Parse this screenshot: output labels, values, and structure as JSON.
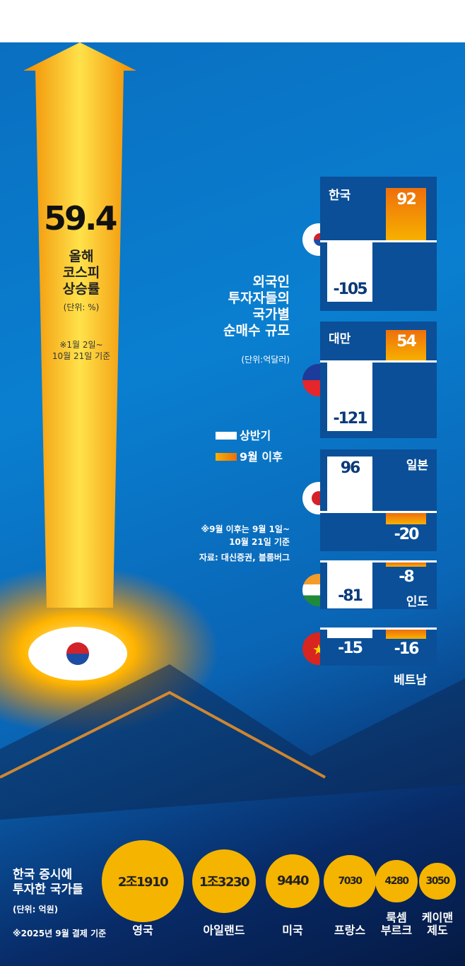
{
  "kospi": {
    "value": "59.4",
    "title_lines": [
      "올해",
      "코스피",
      "상승률"
    ],
    "unit": "(단위: %)",
    "note_lines": [
      "※1월 2일~",
      "10월 21일 기준"
    ]
  },
  "net_buy": {
    "title_lines": [
      "외국인",
      "투자자들의",
      "국가별",
      "순매수 규모"
    ],
    "unit": "(단위:억달러)",
    "legend": [
      "상반기",
      "9월 이후"
    ],
    "note_lines": [
      "※9월 이후는 9월 1일~",
      "10월 21일 기준"
    ],
    "source": "자료: 대신증권, 블룸버그"
  },
  "chart_data": [
    {
      "type": "bar",
      "ylabel": "",
      "unit": "억달러",
      "categories": [
        "한국",
        "대만",
        "일본",
        "인도",
        "베트남"
      ],
      "series": [
        {
          "name": "상반기",
          "color": "#ffffff",
          "values": [
            -105,
            -121,
            96,
            -81,
            -15
          ]
        },
        {
          "name": "9월 이후",
          "color": "#f39a0a",
          "values": [
            92,
            54,
            -20,
            -8,
            -16
          ]
        }
      ]
    },
    {
      "type": "bubble",
      "title": "한국 증시에 투자한 국가들",
      "unit": "(단위: 억원)",
      "note": "※2025년 9월 결제 기준",
      "categories": [
        "영국",
        "아일랜드",
        "미국",
        "프랑스",
        "룩셈 부르크",
        "케이맨 제도"
      ],
      "values": [
        21910,
        13230,
        9440,
        7030,
        4280,
        3050
      ],
      "labels": [
        "2조1910",
        "1조3230",
        "9440",
        "7030",
        "4280",
        "3050"
      ]
    }
  ],
  "bubbles_title_lines": [
    "한국 증시에",
    "투자한 국가들"
  ],
  "bubble_names": [
    [
      "영국"
    ],
    [
      "아일랜드"
    ],
    [
      "미국"
    ],
    [
      "프랑스"
    ],
    [
      "룩셈",
      "부르크"
    ],
    [
      "케이맨",
      "제도"
    ]
  ],
  "colors": {
    "bg": "#0a7fd0",
    "panel": "#0a4f98",
    "orange": "#f39a0a",
    "bubble": "#f5b400"
  }
}
